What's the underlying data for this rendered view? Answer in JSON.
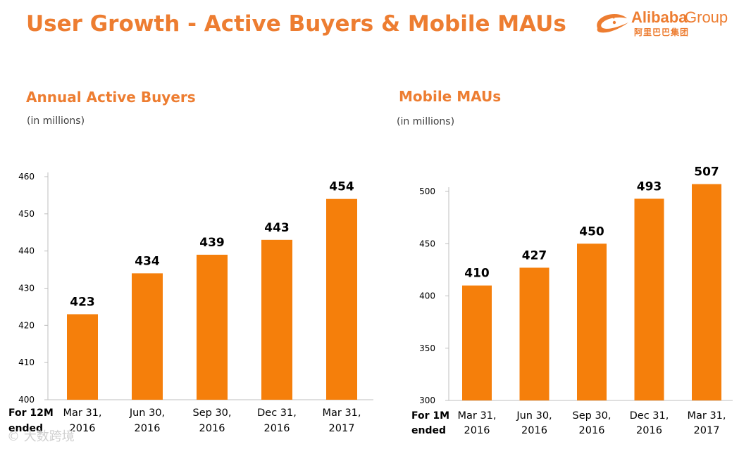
{
  "page": {
    "title": "User Growth - Active Buyers & Mobile MAUs"
  },
  "logo": {
    "brand": "Alibaba",
    "group": "Group",
    "chinese": "阿里巴巴集团"
  },
  "watermark": {
    "text": "大数跨境"
  },
  "colors": {
    "accent": "#ed7d31",
    "bar": "#f57f0b",
    "axis": "#bfbfbf",
    "text": "#000000"
  },
  "chart_data": [
    {
      "type": "bar",
      "title": "Annual Active Buyers",
      "unit_note": "(in millions)",
      "period_label": [
        "For 12M",
        "ended"
      ],
      "categories": [
        [
          "Mar 31,",
          "2016"
        ],
        [
          "Jun 30,",
          "2016"
        ],
        [
          "Sep 30,",
          "2016"
        ],
        [
          "Dec 31,",
          "2016"
        ],
        [
          "Mar 31,",
          "2017"
        ]
      ],
      "values": [
        423,
        434,
        439,
        443,
        454
      ],
      "value_labels": [
        "423",
        "434",
        "439",
        "443",
        "454"
      ],
      "ylim": [
        400,
        460
      ],
      "yticks": [
        400,
        410,
        420,
        430,
        440,
        450,
        460
      ],
      "ytick_labels": [
        "400",
        "410",
        "420",
        "430",
        "440",
        "450",
        "460"
      ],
      "xlabel": "",
      "ylabel": "",
      "grid": false
    },
    {
      "type": "bar",
      "title": "Mobile MAUs",
      "unit_note": "(in millions)",
      "period_label": [
        "For 1M",
        "ended"
      ],
      "categories": [
        [
          "Mar 31,",
          "2016"
        ],
        [
          "Jun 30,",
          "2016"
        ],
        [
          "Sep 30,",
          "2016"
        ],
        [
          "Dec 31,",
          "2016"
        ],
        [
          "Mar 31,",
          "2017"
        ]
      ],
      "values": [
        410,
        427,
        450,
        493,
        507
      ],
      "value_labels": [
        "410",
        "427",
        "450",
        "493",
        "507"
      ],
      "ylim": [
        300,
        500
      ],
      "yticks": [
        300,
        350,
        400,
        450,
        500
      ],
      "ytick_labels": [
        "300",
        "350",
        "400",
        "450",
        "500"
      ],
      "xlabel": "",
      "ylabel": "",
      "grid": false
    }
  ]
}
